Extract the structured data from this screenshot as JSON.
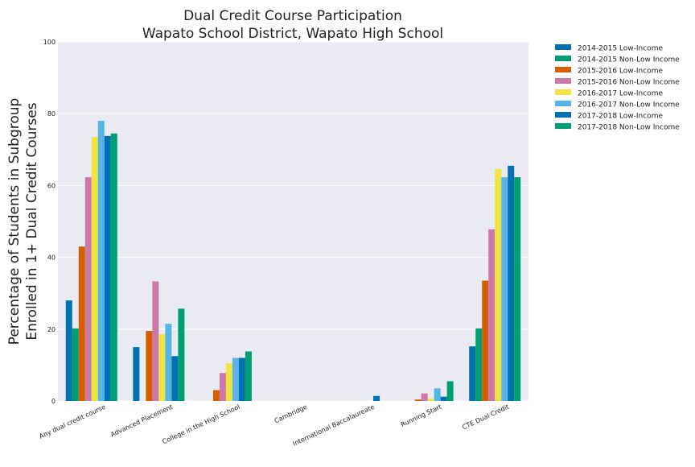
{
  "chart_data": {
    "type": "bar",
    "title_line1": "Dual Credit Course Participation",
    "title_line2": "Wapato School District, Wapato High School",
    "xlabel": "",
    "ylabel_line1": "Percentage of Students in Subgroup",
    "ylabel_line2": "Enrolled in 1+ Dual Credit Courses",
    "ylim": [
      0,
      100
    ],
    "yticks": [
      0,
      20,
      40,
      60,
      80,
      100
    ],
    "grid": true,
    "legend_position": "outside-top-right",
    "background_color": "#EAEAF2",
    "categories": [
      "Any dual credit course",
      "Advanced Placement",
      "College in the High School",
      "Cambridge",
      "International Baccalaureate",
      "Running Start",
      "CTE Dual Credit"
    ],
    "series": [
      {
        "name": "2014-2015 Low-Income",
        "color": "#0072B2",
        "values": [
          28,
          15,
          0,
          0,
          0,
          0,
          15.2
        ]
      },
      {
        "name": "2014-2015 Non-Low Income",
        "color": "#009E73",
        "values": [
          20.2,
          0,
          0,
          0,
          0,
          0,
          20.2
        ]
      },
      {
        "name": "2015-2016 Low-Income",
        "color": "#D55E00",
        "values": [
          43,
          19.5,
          3,
          0,
          0,
          0.4,
          33.5
        ]
      },
      {
        "name": "2015-2016 Non-Low Income",
        "color": "#CC79A7",
        "values": [
          62.3,
          33.3,
          7.8,
          0,
          0,
          2.1,
          47.8
        ]
      },
      {
        "name": "2016-2017 Low-Income",
        "color": "#F0E442",
        "values": [
          73.5,
          18.6,
          10.5,
          0,
          0,
          0.6,
          64.6
        ]
      },
      {
        "name": "2016-2017 Non-Low Income",
        "color": "#56B4E9",
        "values": [
          78,
          21.5,
          12,
          0,
          0,
          3.5,
          62.3
        ]
      },
      {
        "name": "2017-2018 Low-Income",
        "color": "#0072B2",
        "values": [
          73.8,
          12.5,
          12,
          0,
          1.4,
          1.2,
          65.5
        ]
      },
      {
        "name": "2017-2018 Non-Low Income",
        "color": "#009E73",
        "values": [
          74.5,
          25.7,
          13.8,
          0,
          0,
          5.5,
          62.3
        ]
      }
    ]
  }
}
